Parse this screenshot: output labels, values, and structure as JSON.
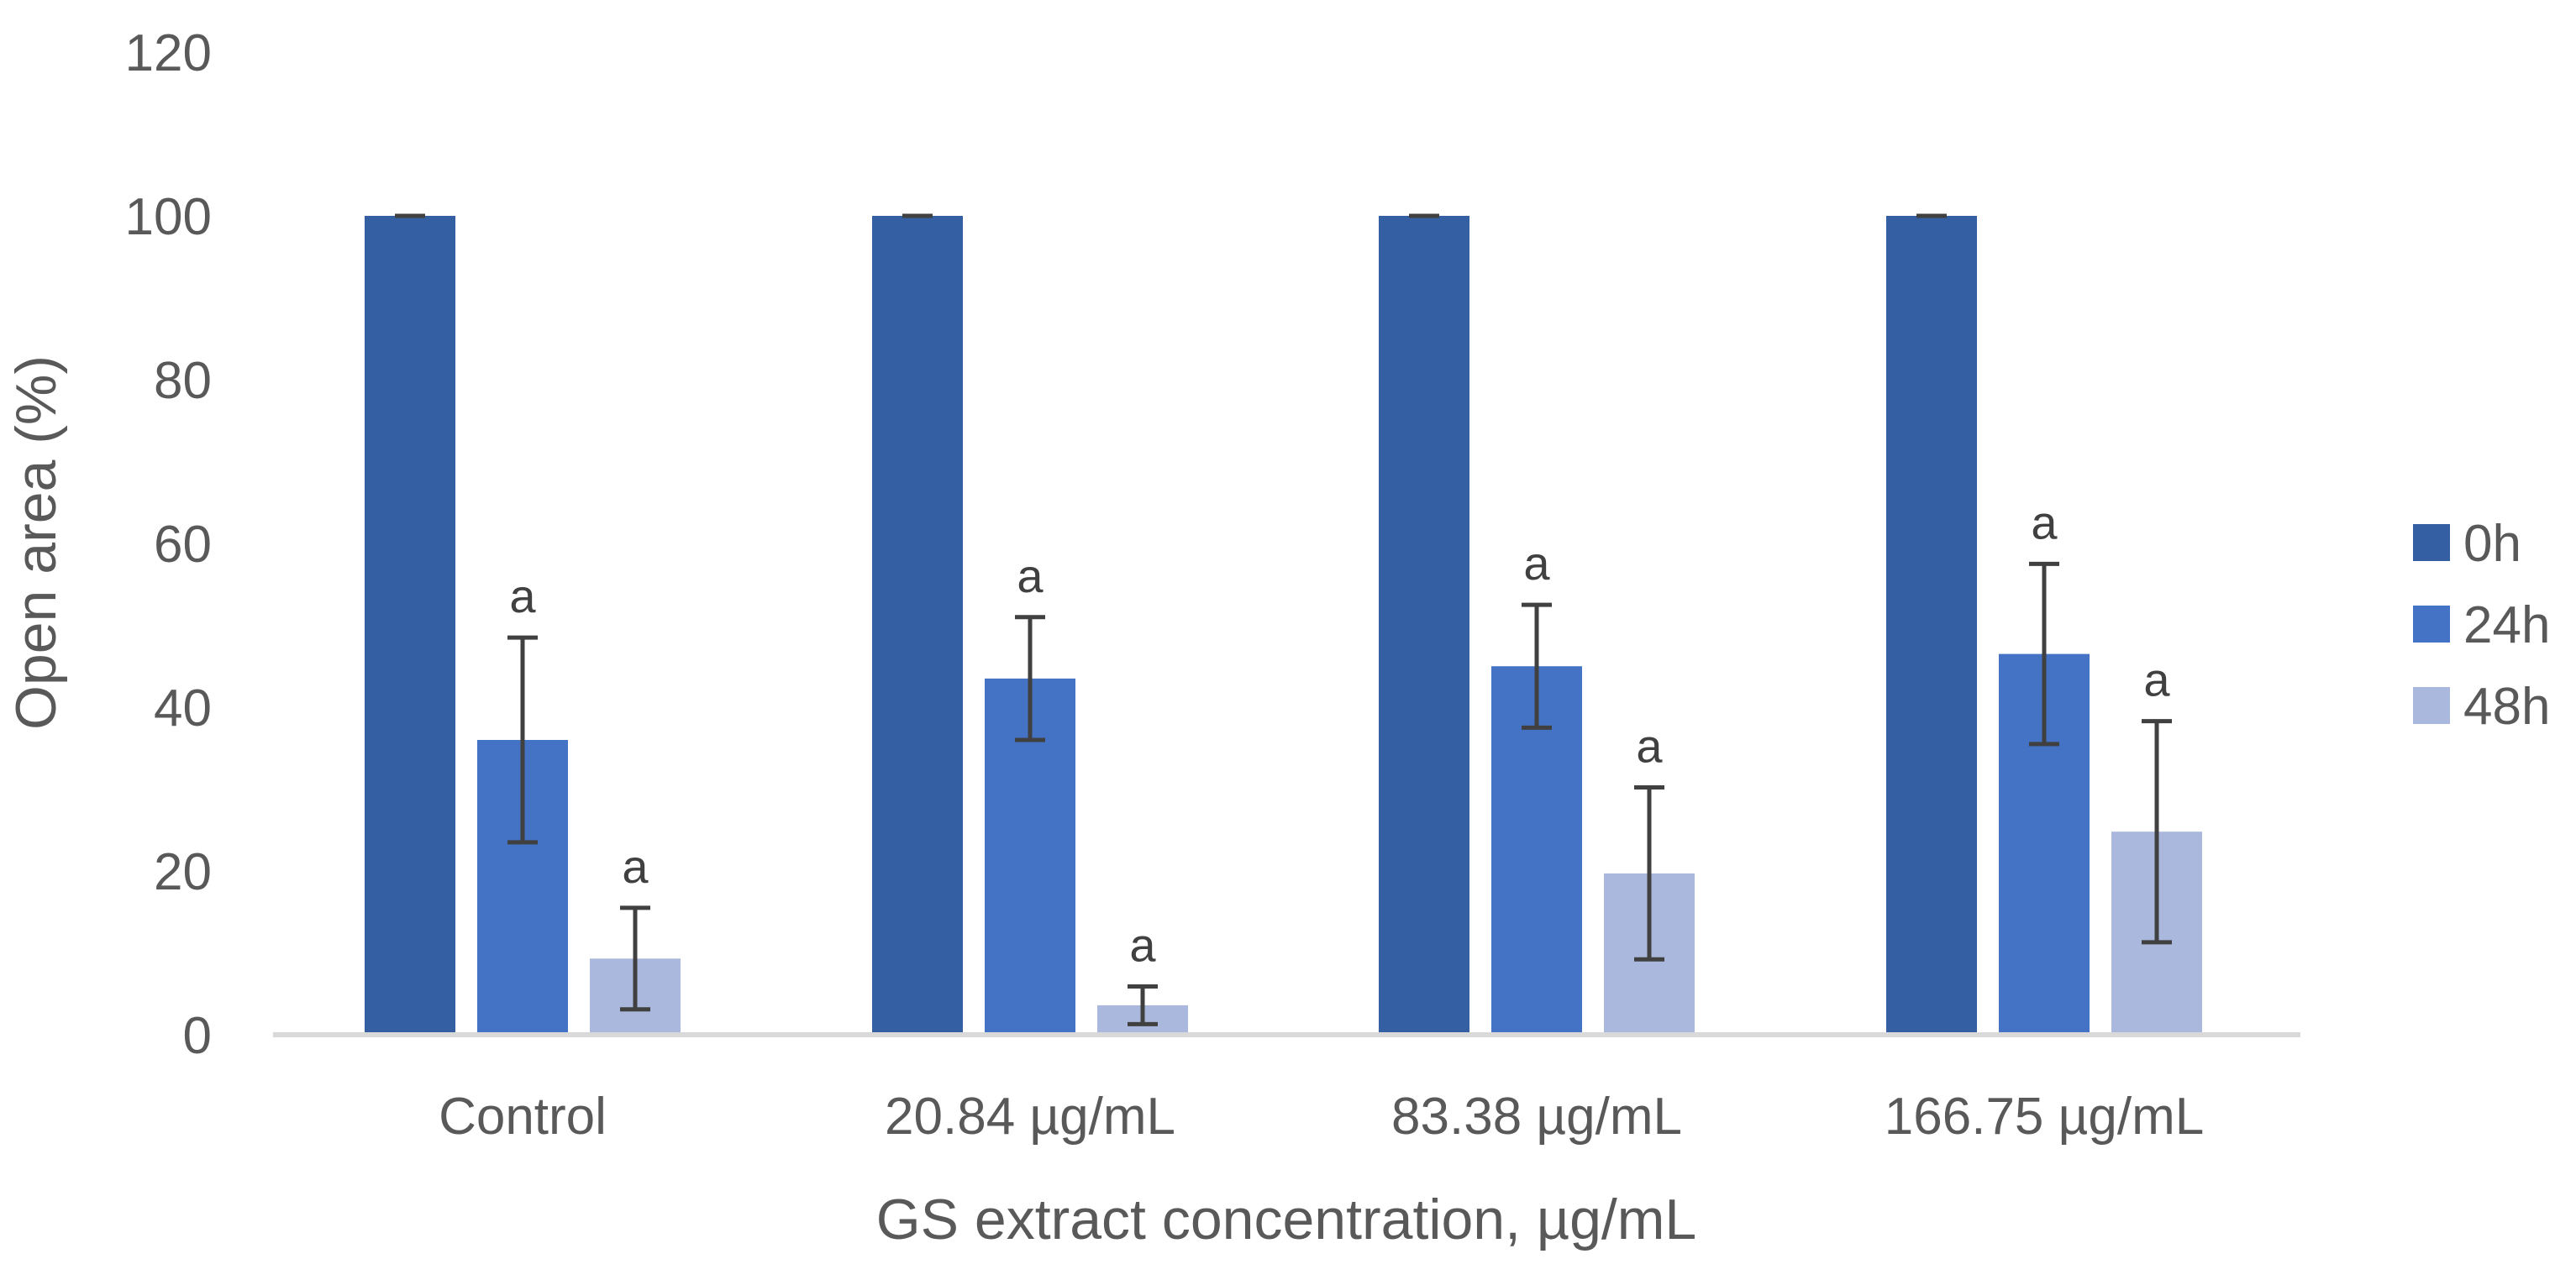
{
  "chart_data": {
    "type": "bar",
    "title": "",
    "xlabel": "GS extract concentration, µg/mL",
    "ylabel": "Open area (%)",
    "ylim": [
      0,
      120
    ],
    "yticks": [
      0,
      20,
      40,
      60,
      80,
      100,
      120
    ],
    "grid": false,
    "legend_position": "right",
    "categories": [
      "Control",
      "20.84 µg/mL",
      "83.38 µg/mL",
      "166.75 µg/mL"
    ],
    "series": [
      {
        "name": "0h",
        "color": "#355FA3",
        "values": [
          100,
          100,
          100,
          100
        ],
        "errors": [
          0,
          0,
          0,
          0
        ],
        "labels": [
          "",
          "",
          "",
          ""
        ]
      },
      {
        "name": "24h",
        "color": "#4472C4",
        "values": [
          36,
          43.5,
          45,
          46.5
        ],
        "errors": [
          12.5,
          7.5,
          7.5,
          11
        ],
        "labels": [
          "a",
          "a",
          "a",
          "a"
        ]
      },
      {
        "name": "48h",
        "color": "#A9B8DC",
        "values": [
          9.3,
          3.6,
          19.7,
          24.8
        ],
        "errors": [
          6.2,
          2.3,
          10.5,
          13.5
        ],
        "labels": [
          "a",
          "a",
          "a",
          "a"
        ]
      }
    ]
  }
}
